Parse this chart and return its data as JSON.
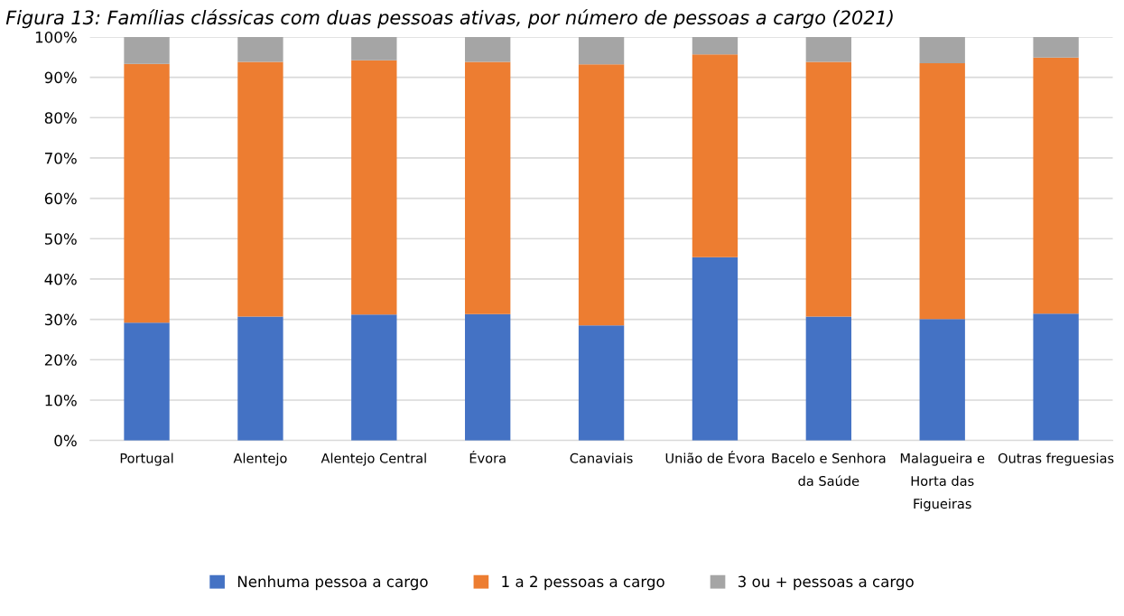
{
  "chart_data": {
    "type": "bar",
    "stacked": true,
    "title": "Figura 13: Famílias clássicas com duas pessoas ativas, por número de pessoas a cargo (2021)",
    "categories": [
      "Portugal",
      "Alentejo",
      "Alentejo Central",
      "Évora",
      "Canaviais",
      "União de Évora",
      "Bacelo e Senhora\nda Saúde",
      "Malagueira e\nHorta das\nFigueiras",
      "Outras freguesias"
    ],
    "series": [
      {
        "name": "Nenhuma pessoa a cargo",
        "color": "#4472c4",
        "values": [
          29.2,
          30.7,
          31.2,
          31.3,
          28.5,
          45.4,
          30.7,
          30.1,
          31.4
        ]
      },
      {
        "name": "1 a 2 pessoas a cargo",
        "color": "#ed7d31",
        "values": [
          64.1,
          63.1,
          63.0,
          62.5,
          64.7,
          50.3,
          63.1,
          63.4,
          63.5
        ]
      },
      {
        "name": "3 ou + pessoas a cargo",
        "color": "#a5a5a5",
        "values": [
          6.7,
          6.2,
          5.8,
          6.2,
          6.8,
          4.3,
          6.2,
          6.5,
          5.1
        ]
      }
    ],
    "ylim": [
      0,
      100
    ],
    "yticks": [
      {
        "value": 0,
        "label": "0%"
      },
      {
        "value": 10,
        "label": "10%"
      },
      {
        "value": 20,
        "label": "20%"
      },
      {
        "value": 30,
        "label": "30%"
      },
      {
        "value": 40,
        "label": "40%"
      },
      {
        "value": 50,
        "label": "50%"
      },
      {
        "value": 60,
        "label": "60%"
      },
      {
        "value": 70,
        "label": "70%"
      },
      {
        "value": 80,
        "label": "80%"
      },
      {
        "value": 90,
        "label": "90%"
      },
      {
        "value": 100,
        "label": "100%"
      }
    ],
    "grid": "y",
    "legend": "bottom"
  }
}
